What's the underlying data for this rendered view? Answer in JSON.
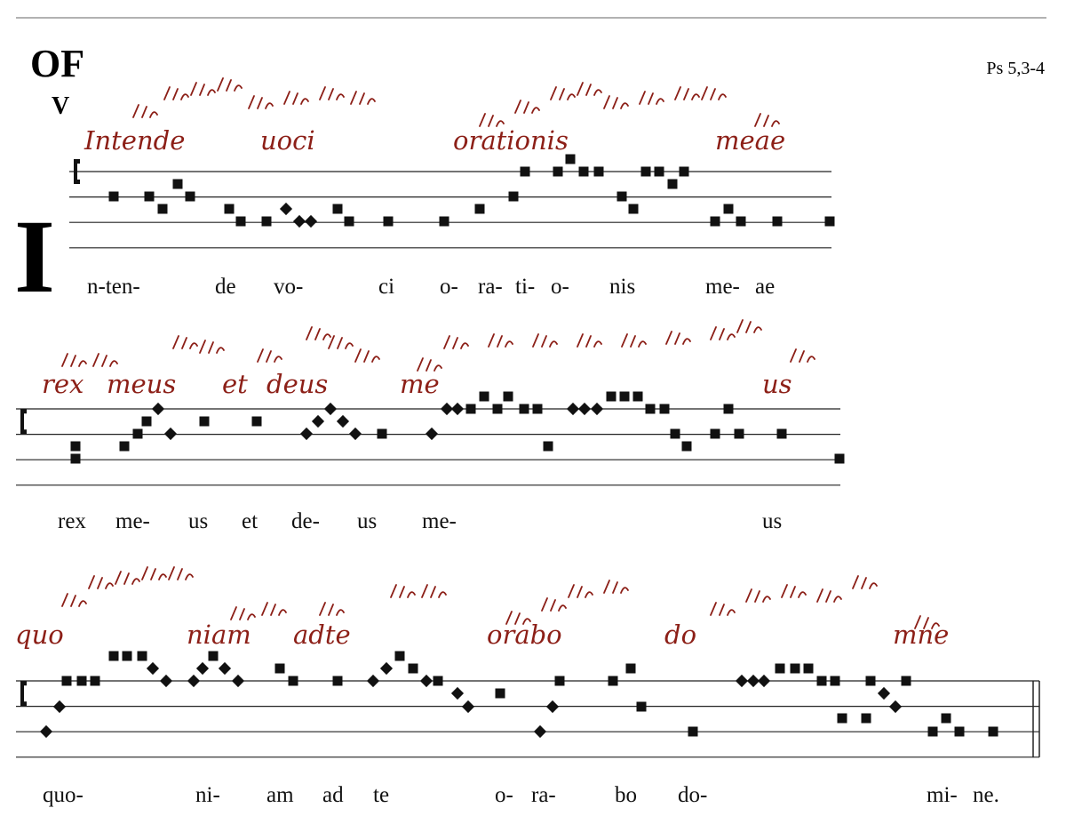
{
  "header": {
    "genre": "OF",
    "mode": "V",
    "reference": "Ps 5,3-4",
    "initial": "I"
  },
  "systems": [
    {
      "neume_text": [
        "Intende",
        "uoci",
        "orationis",
        "meae"
      ],
      "lyrics": [
        "n-ten-",
        "de",
        "vo-",
        "ci",
        "o-",
        "ra-",
        "ti-",
        "o-",
        "nis",
        "me-",
        "ae"
      ]
    },
    {
      "neume_text": [
        "rex",
        "meus",
        "et",
        "deus",
        "me",
        "us"
      ],
      "lyrics": [
        "rex",
        "me-",
        "us",
        "et",
        "de-",
        "us",
        "me-",
        "us"
      ]
    },
    {
      "neume_text": [
        "quo",
        "niam",
        "adte",
        "orabo",
        "do",
        "mne"
      ],
      "lyrics": [
        "quo-",
        "ni-",
        "am",
        "ad",
        "te",
        "o-",
        "ra-",
        "bo",
        "do-",
        "mi-",
        "ne."
      ]
    }
  ]
}
